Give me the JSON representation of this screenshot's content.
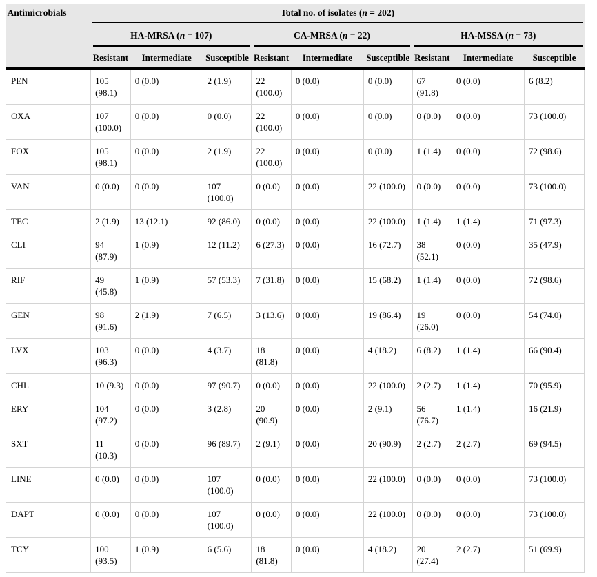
{
  "header": {
    "antimicrobials": "Antimicrobials",
    "total": {
      "pre": "Total no. of isolates (",
      "n": "n",
      "post": " = 202)"
    },
    "groups": [
      {
        "pre": "HA-MRSA (",
        "n": "n",
        "post": " = 107)"
      },
      {
        "pre": "CA-MRSA (",
        "n": "n",
        "post": " = 22)"
      },
      {
        "pre": "HA-MSSA (",
        "n": "n",
        "post": " = 73)"
      }
    ],
    "subheaders": [
      "Resistant",
      "Intermediate",
      "Susceptible",
      "Resistant",
      "Intermediate",
      "Susceptible",
      "Resistant",
      "Intermediate",
      "Susceptible"
    ]
  },
  "rows": [
    {
      "code": "PEN",
      "cells": [
        "105 (98.1)",
        "0 (0.0)",
        "2 (1.9)",
        "22 (100.0)",
        "0 (0.0)",
        "0 (0.0)",
        "67 (91.8)",
        "0 (0.0)",
        "6 (8.2)"
      ]
    },
    {
      "code": "OXA",
      "cells": [
        "107 (100.0)",
        "0 (0.0)",
        "0 (0.0)",
        "22 (100.0)",
        "0 (0.0)",
        "0 (0.0)",
        "0 (0.0)",
        "0 (0.0)",
        "73 (100.0)"
      ]
    },
    {
      "code": "FOX",
      "cells": [
        "105 (98.1)",
        "0 (0.0)",
        "2 (1.9)",
        "22 (100.0)",
        "0 (0.0)",
        "0 (0.0)",
        "1 (1.4)",
        "0 (0.0)",
        "72 (98.6)"
      ]
    },
    {
      "code": "VAN",
      "cells": [
        "0 (0.0)",
        "0 (0.0)",
        "107 (100.0)",
        "0 (0.0)",
        "0 (0.0)",
        "22 (100.0)",
        "0 (0.0)",
        "0 (0.0)",
        "73 (100.0)"
      ]
    },
    {
      "code": "TEC",
      "cells": [
        "2 (1.9)",
        "13 (12.1)",
        "92 (86.0)",
        "0 (0.0)",
        "0 (0.0)",
        "22 (100.0)",
        "1 (1.4)",
        "1 (1.4)",
        "71 (97.3)"
      ]
    },
    {
      "code": "CLI",
      "cells": [
        "94 (87.9)",
        "1 (0.9)",
        "12 (11.2)",
        "6 (27.3)",
        "0 (0.0)",
        "16 (72.7)",
        "38 (52.1)",
        "0 (0.0)",
        "35 (47.9)"
      ]
    },
    {
      "code": "RIF",
      "cells": [
        "49 (45.8)",
        "1 (0.9)",
        "57 (53.3)",
        "7 (31.8)",
        "0 (0.0)",
        "15 (68.2)",
        "1 (1.4)",
        "0 (0.0)",
        "72 (98.6)"
      ]
    },
    {
      "code": "GEN",
      "cells": [
        "98 (91.6)",
        "2 (1.9)",
        "7 (6.5)",
        "3 (13.6)",
        "0 (0.0)",
        "19 (86.4)",
        "19 (26.0)",
        "0 (0.0)",
        "54 (74.0)"
      ]
    },
    {
      "code": "LVX",
      "cells": [
        "103 (96.3)",
        "0 (0.0)",
        "4 (3.7)",
        "18 (81.8)",
        "0 (0.0)",
        "4 (18.2)",
        "6 (8.2)",
        "1 (1.4)",
        "66 (90.4)"
      ]
    },
    {
      "code": "CHL",
      "cells": [
        "10 (9.3)",
        "0 (0.0)",
        "97 (90.7)",
        "0 (0.0)",
        "0 (0.0)",
        "22 (100.0)",
        "2 (2.7)",
        "1 (1.4)",
        "70 (95.9)"
      ]
    },
    {
      "code": "ERY",
      "cells": [
        "104 (97.2)",
        "0 (0.0)",
        "3 (2.8)",
        "20 (90.9)",
        "0 (0.0)",
        "2 (9.1)",
        "56 (76.7)",
        "1 (1.4)",
        "16 (21.9)"
      ]
    },
    {
      "code": "SXT",
      "cells": [
        "11 (10.3)",
        "0 (0.0)",
        "96 (89.7)",
        "2 (9.1)",
        "0 (0.0)",
        "20 (90.9)",
        "2 (2.7)",
        "2 (2.7)",
        "69 (94.5)"
      ]
    },
    {
      "code": "LINE",
      "cells": [
        "0 (0.0)",
        "0 (0.0)",
        "107 (100.0)",
        "0 (0.0)",
        "0 (0.0)",
        "22 (100.0)",
        "0 (0.0)",
        "0 (0.0)",
        "73 (100.0)"
      ]
    },
    {
      "code": "DAPT",
      "cells": [
        "0 (0.0)",
        "0 (0.0)",
        "107 (100.0)",
        "0 (0.0)",
        "0 (0.0)",
        "22 (100.0)",
        "0 (0.0)",
        "0 (0.0)",
        "73 (100.0)"
      ]
    },
    {
      "code": "TCY",
      "cells": [
        "100 (93.5)",
        "1 (0.9)",
        "6 (5.6)",
        "18 (81.8)",
        "0 (0.0)",
        "4 (18.2)",
        "20 (27.4)",
        "2 (2.7)",
        "51 (69.9)"
      ]
    }
  ],
  "colors": {
    "header_background": "#e7e7e7",
    "grid_line": "#d4d4d4",
    "heavy_rule": "#000000",
    "text": "#000000"
  }
}
